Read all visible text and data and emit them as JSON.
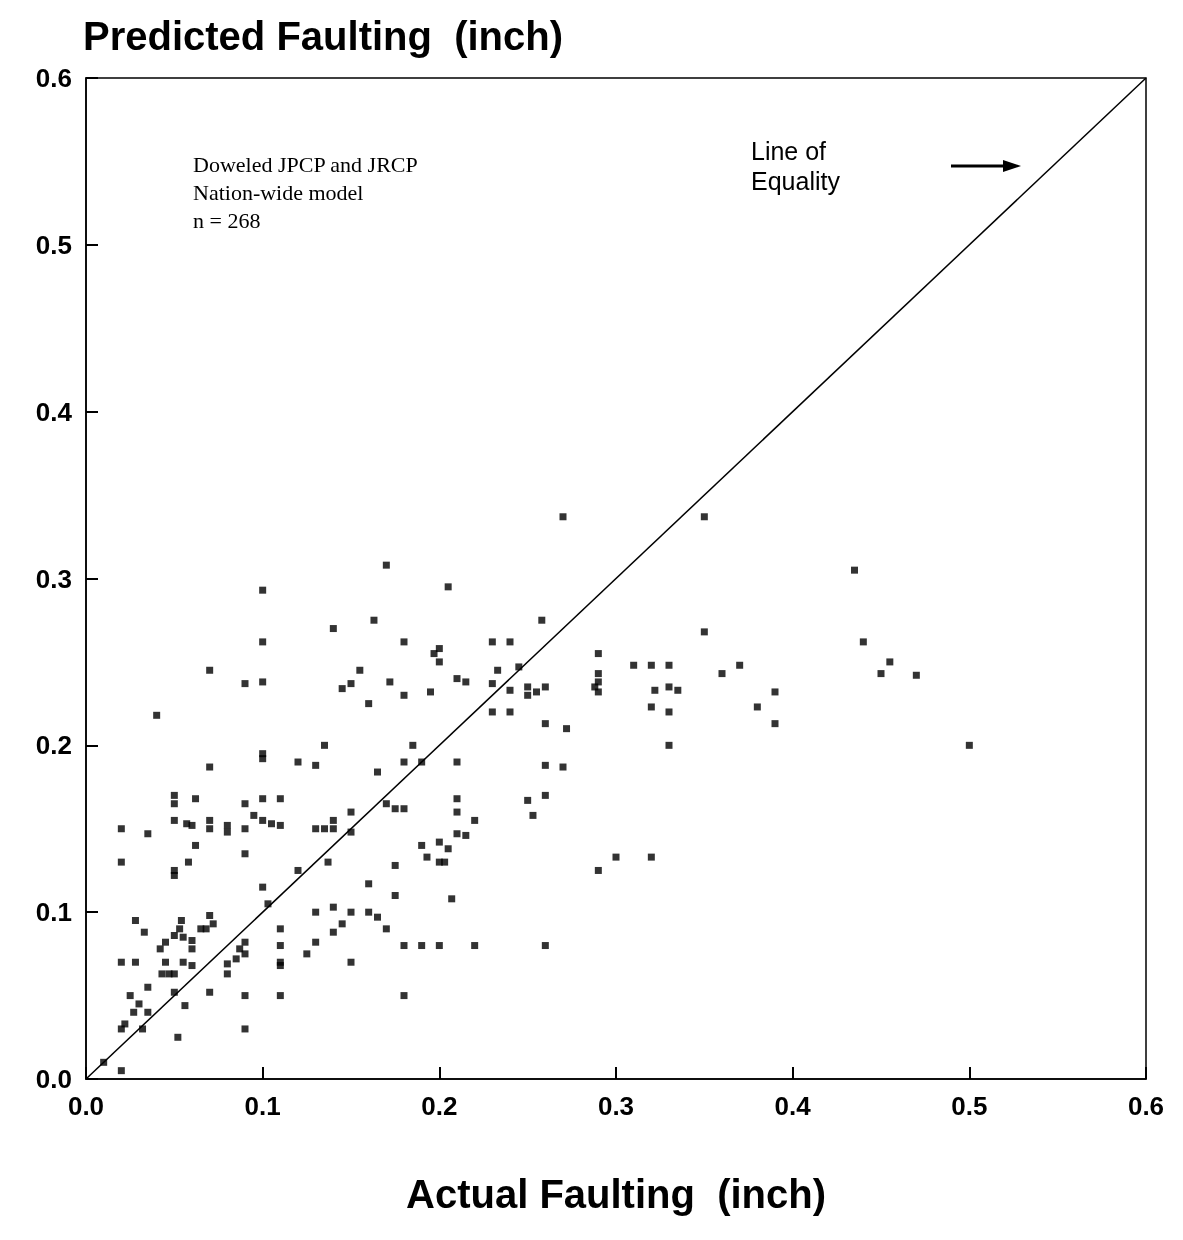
{
  "chart_data": {
    "type": "scatter",
    "ylabel": "Predicted Faulting  (inch)",
    "xlabel": "Actual Faulting  (inch)",
    "annotations": [
      "Doweled JPCP and JRCP",
      "Nation-wide model",
      "n = 268"
    ],
    "xlim": [
      0,
      0.6
    ],
    "ylim": [
      0,
      0.6
    ],
    "xticks": [
      {
        "value": 0,
        "label": "0.0"
      },
      0.1,
      0.2,
      0.3,
      0.4,
      0.5,
      0.6
    ],
    "yticks": [
      {
        "value": 0,
        "label": "0.0"
      },
      0.1,
      0.2,
      0.3,
      0.4,
      0.5,
      0.6
    ],
    "grid": false,
    "legend": false,
    "marker": "square",
    "series": [
      {
        "color": "#000000",
        "x": [
          0.01,
          0.02,
          0.02,
          0.022,
          0.02,
          0.02,
          0.02,
          0.025,
          0.027,
          0.028,
          0.028,
          0.03,
          0.032,
          0.033,
          0.035,
          0.035,
          0.035,
          0.04,
          0.042,
          0.043,
          0.045,
          0.045,
          0.047,
          0.05,
          0.05,
          0.05,
          0.05,
          0.05,
          0.05,
          0.05,
          0.05,
          0.052,
          0.053,
          0.054,
          0.055,
          0.055,
          0.056,
          0.057,
          0.058,
          0.06,
          0.06,
          0.06,
          0.06,
          0.062,
          0.062,
          0.065,
          0.068,
          0.07,
          0.07,
          0.07,
          0.07,
          0.07,
          0.07,
          0.072,
          0.08,
          0.08,
          0.08,
          0.08,
          0.085,
          0.087,
          0.09,
          0.09,
          0.09,
          0.09,
          0.09,
          0.09,
          0.09,
          0.09,
          0.095,
          0.1,
          0.1,
          0.1,
          0.1,
          0.1,
          0.1,
          0.1,
          0.1,
          0.103,
          0.105,
          0.11,
          0.11,
          0.11,
          0.11,
          0.11,
          0.11,
          0.11,
          0.12,
          0.12,
          0.125,
          0.13,
          0.13,
          0.13,
          0.13,
          0.135,
          0.135,
          0.137,
          0.14,
          0.14,
          0.14,
          0.14,
          0.14,
          0.145,
          0.145,
          0.15,
          0.15,
          0.15,
          0.15,
          0.15,
          0.155,
          0.16,
          0.16,
          0.16,
          0.163,
          0.165,
          0.165,
          0.17,
          0.17,
          0.17,
          0.172,
          0.175,
          0.175,
          0.175,
          0.18,
          0.18,
          0.18,
          0.18,
          0.18,
          0.18,
          0.185,
          0.19,
          0.19,
          0.19,
          0.193,
          0.195,
          0.197,
          0.2,
          0.2,
          0.2,
          0.2,
          0.2,
          0.203,
          0.205,
          0.205,
          0.207,
          0.21,
          0.21,
          0.21,
          0.21,
          0.21,
          0.215,
          0.215,
          0.22,
          0.22,
          0.23,
          0.23,
          0.23,
          0.233,
          0.24,
          0.24,
          0.24,
          0.245,
          0.25,
          0.25,
          0.25,
          0.253,
          0.255,
          0.258,
          0.26,
          0.26,
          0.26,
          0.26,
          0.26,
          0.27,
          0.27,
          0.272,
          0.288,
          0.29,
          0.29,
          0.29,
          0.29,
          0.29,
          0.3,
          0.31,
          0.32,
          0.32,
          0.32,
          0.322,
          0.33,
          0.33,
          0.33,
          0.33,
          0.335,
          0.35,
          0.35,
          0.36,
          0.37,
          0.38,
          0.39,
          0.39,
          0.435,
          0.44,
          0.45,
          0.455,
          0.47,
          0.5
        ],
        "values": [
          0.01,
          0.005,
          0.03,
          0.033,
          0.07,
          0.13,
          0.15,
          0.05,
          0.04,
          0.095,
          0.07,
          0.045,
          0.03,
          0.088,
          0.055,
          0.04,
          0.147,
          0.218,
          0.078,
          0.063,
          0.07,
          0.082,
          0.063,
          0.052,
          0.063,
          0.086,
          0.122,
          0.125,
          0.155,
          0.165,
          0.17,
          0.025,
          0.09,
          0.095,
          0.085,
          0.07,
          0.044,
          0.153,
          0.13,
          0.068,
          0.078,
          0.083,
          0.152,
          0.14,
          0.168,
          0.09,
          0.09,
          0.052,
          0.098,
          0.15,
          0.155,
          0.187,
          0.245,
          0.093,
          0.063,
          0.069,
          0.148,
          0.152,
          0.072,
          0.078,
          0.03,
          0.05,
          0.075,
          0.082,
          0.135,
          0.15,
          0.165,
          0.237,
          0.158,
          0.115,
          0.155,
          0.168,
          0.192,
          0.195,
          0.238,
          0.262,
          0.293,
          0.105,
          0.153,
          0.05,
          0.068,
          0.07,
          0.08,
          0.09,
          0.152,
          0.168,
          0.125,
          0.19,
          0.075,
          0.082,
          0.1,
          0.15,
          0.188,
          0.15,
          0.2,
          0.13,
          0.088,
          0.103,
          0.15,
          0.155,
          0.27,
          0.093,
          0.234,
          0.07,
          0.1,
          0.148,
          0.16,
          0.237,
          0.245,
          0.1,
          0.117,
          0.225,
          0.275,
          0.097,
          0.184,
          0.09,
          0.165,
          0.308,
          0.238,
          0.11,
          0.128,
          0.162,
          0.05,
          0.08,
          0.162,
          0.19,
          0.23,
          0.262,
          0.2,
          0.08,
          0.14,
          0.19,
          0.133,
          0.232,
          0.255,
          0.08,
          0.13,
          0.142,
          0.25,
          0.258,
          0.13,
          0.295,
          0.138,
          0.108,
          0.19,
          0.16,
          0.168,
          0.147,
          0.24,
          0.146,
          0.238,
          0.08,
          0.155,
          0.22,
          0.237,
          0.262,
          0.245,
          0.22,
          0.233,
          0.262,
          0.247,
          0.167,
          0.23,
          0.235,
          0.158,
          0.232,
          0.275,
          0.08,
          0.17,
          0.188,
          0.213,
          0.235,
          0.187,
          0.337,
          0.21,
          0.235,
          0.232,
          0.125,
          0.238,
          0.243,
          0.255,
          0.133,
          0.248,
          0.133,
          0.223,
          0.248,
          0.233,
          0.2,
          0.22,
          0.235,
          0.248,
          0.233,
          0.268,
          0.337,
          0.243,
          0.248,
          0.223,
          0.213,
          0.232,
          0.305,
          0.262,
          0.243,
          0.25,
          0.242,
          0.2
        ]
      },
      {
        "type": "line",
        "name": "Line of Equality",
        "marker": "none",
        "color": "#000000",
        "x": [
          0,
          0.6
        ],
        "values": [
          0,
          0.6
        ]
      }
    ]
  }
}
